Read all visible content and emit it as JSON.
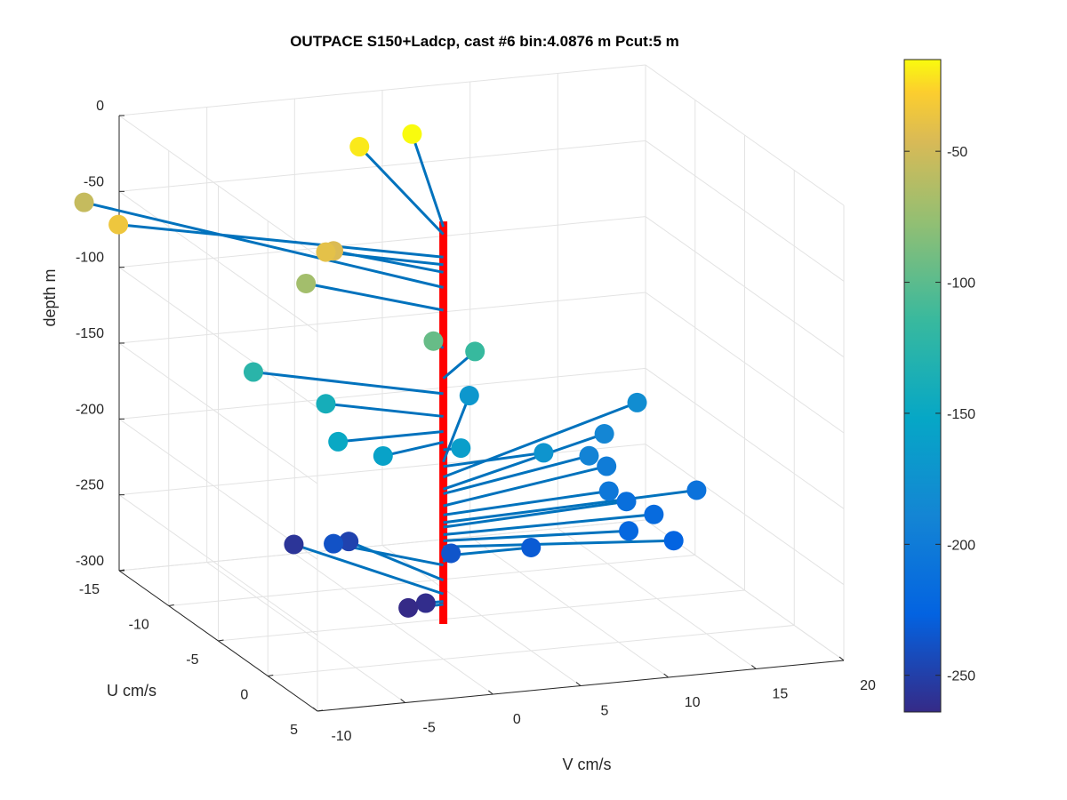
{
  "chart_data": {
    "type": "scatter3d",
    "title": "OUTPACE S150+Ladcp, cast #6 bin:4.0876 m  Pcut:5 m",
    "xlabel": "V cm/s",
    "ylabel": "U cm/s",
    "zlabel": "depth m",
    "xlim": [
      -10,
      20
    ],
    "ylim": [
      -15,
      5
    ],
    "zlim": [
      -300,
      0
    ],
    "x_ticks": [
      "-10",
      "-5",
      "0",
      "5",
      "10",
      "15",
      "20"
    ],
    "y_ticks": [
      "-15",
      "-10",
      "-5",
      "0",
      "5"
    ],
    "z_ticks": [
      "0",
      "-50",
      "-100",
      "-150",
      "-200",
      "-250",
      "-300"
    ],
    "grid": true,
    "colorbar": {
      "colormap": "parula",
      "range": [
        -264,
        -15
      ],
      "ticks": [
        "-50",
        "-100",
        "-150",
        "-200",
        "-250"
      ]
    },
    "profile_color": "#ff0000",
    "stick_color": "#0072bd",
    "vectors": [
      {
        "depth": -15,
        "v": 5.0,
        "u": -12.0
      },
      {
        "depth": -20,
        "v": 2.0,
        "u": -12.0
      },
      {
        "depth": -35,
        "v": -14.0,
        "u": -8.0
      },
      {
        "depth": -40,
        "v": -5.0,
        "u": -3.0
      },
      {
        "depth": -45,
        "v": -4.0,
        "u": -4.0
      },
      {
        "depth": -55,
        "v": -12.0,
        "u": -15.0
      },
      {
        "depth": -70,
        "v": -5.0,
        "u": -5.0
      },
      {
        "depth": -95,
        "v": 0.0,
        "u": -1.0
      },
      {
        "depth": -115,
        "v": 3.5,
        "u": -3.0
      },
      {
        "depth": -125,
        "v": -8.0,
        "u": -5.0
      },
      {
        "depth": -140,
        "v": -5.0,
        "u": -3.0
      },
      {
        "depth": -150,
        "v": -6.0,
        "u": 0.0
      },
      {
        "depth": -157,
        "v": -4.0,
        "u": 1.0
      },
      {
        "depth": -162,
        "v": 1.0,
        "u": 0.0
      },
      {
        "depth": -170,
        "v": 6.0,
        "u": -8.0
      },
      {
        "depth": -173,
        "v": 6.0,
        "u": -0.5
      },
      {
        "depth": -180,
        "v": 15.0,
        "u": -7.0
      },
      {
        "depth": -188,
        "v": 12.0,
        "u": -5.0
      },
      {
        "depth": -191,
        "v": 10.0,
        "u": -3.0
      },
      {
        "depth": -199,
        "v": 11.0,
        "u": -3.0
      },
      {
        "depth": -205,
        "v": 10.0,
        "u": -1.0
      },
      {
        "depth": -210,
        "v": 15.0,
        "u": -1.0
      },
      {
        "depth": -213,
        "v": 11.0,
        "u": -1.0
      },
      {
        "depth": -218,
        "v": 12.0,
        "u": 0.0
      },
      {
        "depth": -222,
        "v": 10.0,
        "u": 1.0
      },
      {
        "depth": -226,
        "v": 12.0,
        "u": 2.0
      },
      {
        "depth": -232,
        "v": 5.0,
        "u": 0.0
      },
      {
        "depth": -236,
        "v": 1.0,
        "u": -1.0
      },
      {
        "depth": -238,
        "v": -4.0,
        "u": -4.0
      },
      {
        "depth": -248,
        "v": -2.0,
        "u": -6.0
      },
      {
        "depth": -257,
        "v": -4.0,
        "u": -8.0
      },
      {
        "depth": -262,
        "v": -1.0,
        "u": 0.0
      },
      {
        "depth": -264,
        "v": -2.0,
        "u": 0.0
      }
    ]
  }
}
